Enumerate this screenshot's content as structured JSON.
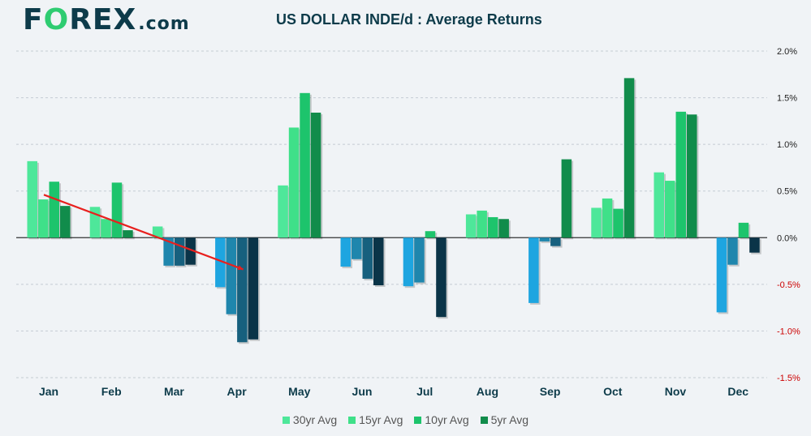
{
  "header": {
    "logo_prefix": "F",
    "logo_o": "O",
    "logo_suffix": "REX",
    "logo_tld": ".com",
    "title": "US DOLLAR INDE/d : Average Returns"
  },
  "colors": {
    "series_pos": [
      "#4ee79a",
      "#3fe089",
      "#1dc46c",
      "#118c4b"
    ],
    "series_neg": [
      "#1ea5e0",
      "#1f86ad",
      "#17607e",
      "#0a3448"
    ],
    "trend_line": "#e8201e",
    "zero_tick_color": "#222222",
    "neg_tick_color": "#cc0000",
    "pos_tick_color": "#222222"
  },
  "chart_data": {
    "type": "bar",
    "title": "US DOLLAR INDE/d : Average Returns",
    "categories": [
      "Jan",
      "Feb",
      "Mar",
      "Apr",
      "May",
      "Jun",
      "Jul",
      "Aug",
      "Sep",
      "Oct",
      "Nov",
      "Dec"
    ],
    "series": [
      {
        "name": "30yr Avg",
        "values": [
          0.82,
          0.33,
          0.12,
          -0.53,
          0.56,
          -0.31,
          -0.52,
          0.25,
          -0.7,
          0.32,
          0.7,
          -0.8
        ]
      },
      {
        "name": "15yr Avg",
        "values": [
          0.41,
          0.2,
          -0.3,
          -0.82,
          1.18,
          -0.23,
          -0.48,
          0.29,
          -0.04,
          0.42,
          0.61,
          -0.29
        ]
      },
      {
        "name": "10yr Avg",
        "values": [
          0.6,
          0.59,
          -0.3,
          -1.12,
          1.55,
          -0.44,
          0.07,
          0.22,
          -0.09,
          0.31,
          1.35,
          0.16
        ]
      },
      {
        "name": "5yr Avg",
        "values": [
          0.34,
          0.08,
          -0.29,
          -1.09,
          1.34,
          -0.51,
          -0.85,
          0.2,
          0.84,
          1.71,
          1.32,
          -0.16
        ]
      }
    ],
    "ylim": [
      -1.5,
      2.0
    ],
    "yticks": [
      "2.0%",
      "1.5%",
      "1.0%",
      "0.5%",
      "0.0%",
      "-0.5%",
      "-1.0%",
      "-1.5%"
    ],
    "ytick_values": [
      2.0,
      1.5,
      1.0,
      0.5,
      0.0,
      -0.5,
      -1.0,
      -1.5
    ],
    "trend_line": {
      "from": {
        "month": "Jan",
        "value": 0.46
      },
      "to": {
        "month": "Apr",
        "value": -0.34
      }
    },
    "grid": "horizontal-dashed",
    "legend_position": "bottom"
  },
  "legend": {
    "items": [
      "30yr Avg",
      "15yr Avg",
      "10yr Avg",
      "5yr Avg"
    ]
  }
}
